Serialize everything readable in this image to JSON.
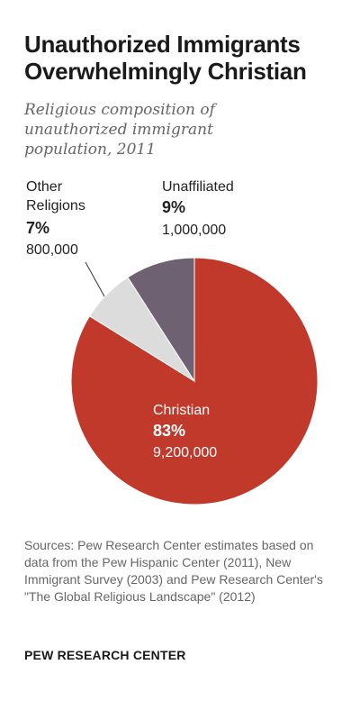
{
  "header": {
    "title": "Unauthorized Immigrants Overwhelmingly Christian",
    "subtitle": "Religious composition of unauthorized immigrant population, 2011"
  },
  "chart_data": {
    "type": "pie",
    "title": "Unauthorized Immigrants Overwhelmingly Christian",
    "subtitle": "Religious composition of unauthorized immigrant population, 2011",
    "slices": [
      {
        "name": "Christian",
        "percent": 83,
        "percent_label": "83%",
        "count_label": "9,200,000",
        "color": "#c0392b"
      },
      {
        "name": "Other Religions",
        "percent": 7,
        "percent_label": "7%",
        "count_label": "800,000",
        "color": "#dcdcdc"
      },
      {
        "name": "Unaffiliated",
        "percent": 9,
        "percent_label": "9%",
        "count_label": "1,000,000",
        "color": "#6e6272"
      }
    ]
  },
  "footer": {
    "source": "Sources: Pew Research Center estimates based on data from the Pew Hispanic Center (2011), New Immigrant Survey (2003) and Pew Research Center's \"The Global Religious Landscape\" (2012)",
    "org": "PEW RESEARCH CENTER"
  }
}
